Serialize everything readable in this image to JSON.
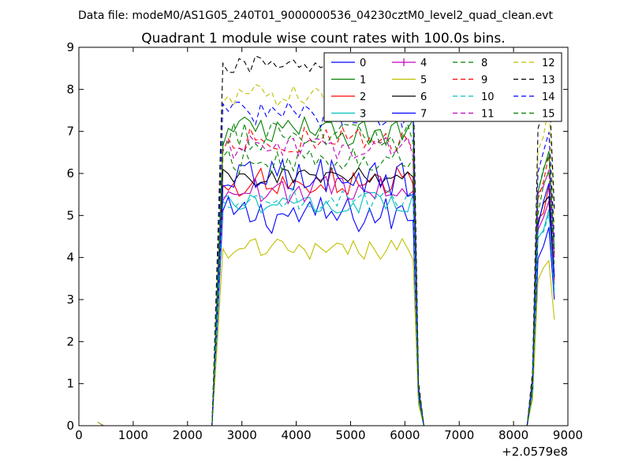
{
  "figure": {
    "suptitle": "Data file: modeM0/AS1G05_240T01_9000000536_04230cztM0_level2_quad_clean.evt"
  },
  "chart_data": {
    "type": "line",
    "title": "Quadrant 1 module wise count rates with 100.0s bins.",
    "xlabel": "",
    "ylabel": "",
    "x_offset_label": "+2.0579e8",
    "xlim": [
      0,
      9000
    ],
    "ylim": [
      0,
      9
    ],
    "xticks": [
      0,
      1000,
      2000,
      3000,
      4000,
      5000,
      6000,
      7000,
      8000,
      9000
    ],
    "yticks": [
      0,
      1,
      2,
      3,
      4,
      5,
      6,
      7,
      8,
      9
    ],
    "grid": false,
    "legend": {
      "placement": "top-right",
      "columns": 4
    },
    "series": [
      {
        "name": "0",
        "color": "#0000ff",
        "dash": "solid",
        "marker": "none",
        "level": 5.0,
        "amp": 0.45
      },
      {
        "name": "1",
        "color": "#008000",
        "dash": "solid",
        "marker": "none",
        "level": 7.0,
        "amp": 0.35
      },
      {
        "name": "2",
        "color": "#ff0000",
        "dash": "solid",
        "marker": "none",
        "level": 5.8,
        "amp": 0.35
      },
      {
        "name": "3",
        "color": "#00bfbf",
        "dash": "solid",
        "marker": "none",
        "level": 5.3,
        "amp": 0.25
      },
      {
        "name": "4",
        "color": "#bf00bf",
        "dash": "solid",
        "marker": "plus",
        "level": 5.6,
        "amp": 0.35
      },
      {
        "name": "5",
        "color": "#bfbf00",
        "dash": "solid",
        "marker": "none",
        "level": 4.2,
        "amp": 0.25
      },
      {
        "name": "6",
        "color": "#000000",
        "dash": "solid",
        "marker": "none",
        "level": 5.9,
        "amp": 0.25
      },
      {
        "name": "7",
        "color": "#0000ff",
        "dash": "solid",
        "marker": "none",
        "level": 5.9,
        "amp": 0.45
      },
      {
        "name": "8",
        "color": "#008000",
        "dash": "dashed",
        "marker": "none",
        "level": 6.3,
        "amp": 0.3
      },
      {
        "name": "9",
        "color": "#ff0000",
        "dash": "dashed",
        "marker": "none",
        "level": 6.8,
        "amp": 0.3
      },
      {
        "name": "10",
        "color": "#00bfbf",
        "dash": "dashed",
        "marker": "none",
        "level": 5.4,
        "amp": 0.3
      },
      {
        "name": "11",
        "color": "#bf00bf",
        "dash": "dashed",
        "marker": "none",
        "level": 6.6,
        "amp": 0.3
      },
      {
        "name": "12",
        "color": "#bfbf00",
        "dash": "dashed",
        "marker": "none",
        "level": 7.9,
        "amp": 0.3
      },
      {
        "name": "13",
        "color": "#000000",
        "dash": "dashed",
        "marker": "none",
        "level": 8.6,
        "amp": 0.2
      },
      {
        "name": "14",
        "color": "#0000ff",
        "dash": "dashed",
        "marker": "none",
        "level": 7.4,
        "amp": 0.3
      },
      {
        "name": "15",
        "color": "#008000",
        "dash": "dashed",
        "marker": "none",
        "level": 6.9,
        "amp": 0.35
      }
    ]
  }
}
